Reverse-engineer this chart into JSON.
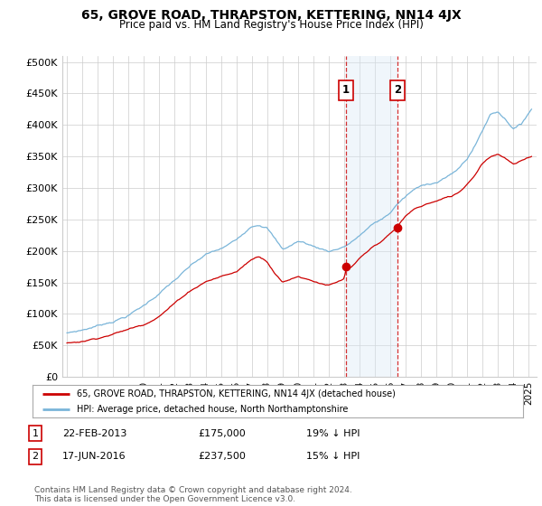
{
  "title": "65, GROVE ROAD, THRAPSTON, KETTERING, NN14 4JX",
  "subtitle": "Price paid vs. HM Land Registry's House Price Index (HPI)",
  "ylabel_ticks": [
    "£0",
    "£50K",
    "£100K",
    "£150K",
    "£200K",
    "£250K",
    "£300K",
    "£350K",
    "£400K",
    "£450K",
    "£500K"
  ],
  "ytick_values": [
    0,
    50000,
    100000,
    150000,
    200000,
    250000,
    300000,
    350000,
    400000,
    450000,
    500000
  ],
  "ylim": [
    0,
    510000
  ],
  "xlim_start": 1994.7,
  "xlim_end": 2025.5,
  "sale1_date": 2013.13,
  "sale1_price": 175000,
  "sale2_date": 2016.46,
  "sale2_price": 237500,
  "annotation1_label": "1",
  "annotation1_text": "22-FEB-2013",
  "annotation1_price": "£175,000",
  "annotation1_pct": "19% ↓ HPI",
  "annotation2_label": "2",
  "annotation2_text": "17-JUN-2016",
  "annotation2_price": "£237,500",
  "annotation2_pct": "15% ↓ HPI",
  "legend_line1": "65, GROVE ROAD, THRAPSTON, KETTERING, NN14 4JX (detached house)",
  "legend_line2": "HPI: Average price, detached house, North Northamptonshire",
  "footer": "Contains HM Land Registry data © Crown copyright and database right 2024.\nThis data is licensed under the Open Government Licence v3.0.",
  "hpi_color": "#7ab5d9",
  "price_color": "#cc0000",
  "shade_color": "#daeaf5",
  "vline_color": "#cc0000",
  "box_color": "#cc0000",
  "background_color": "#ffffff",
  "grid_color": "#cccccc"
}
